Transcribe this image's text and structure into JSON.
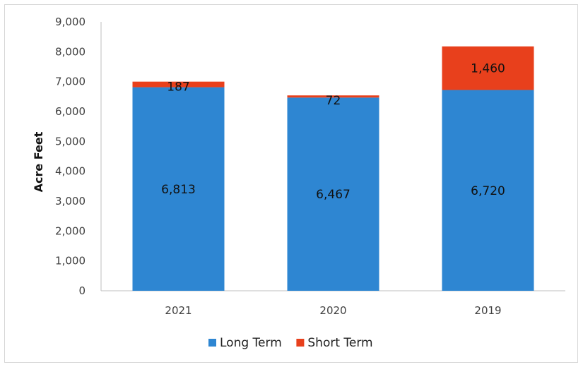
{
  "chart_data": {
    "type": "bar",
    "stacked": true,
    "categories": [
      "2021",
      "2020",
      "2019"
    ],
    "series": [
      {
        "name": "Long Term",
        "values": [
          6813,
          6467,
          6720
        ],
        "color": "#2e86d2",
        "labels": [
          "6,813",
          "6,467",
          "6,720"
        ]
      },
      {
        "name": "Short Term",
        "values": [
          187,
          72,
          1460
        ],
        "color": "#e8401c",
        "labels": [
          "187",
          "72",
          "1,460"
        ]
      }
    ],
    "title": "",
    "xlabel": "",
    "ylabel": "Acre Feet",
    "ylim": [
      0,
      9000
    ],
    "yticks": [
      0,
      1000,
      2000,
      3000,
      4000,
      5000,
      6000,
      7000,
      8000,
      9000
    ],
    "ytick_labels": [
      "0",
      "1,000",
      "2,000",
      "3,000",
      "4,000",
      "5,000",
      "6,000",
      "7,000",
      "8,000",
      "9,000"
    ],
    "grid": false,
    "legend": "bottom"
  }
}
